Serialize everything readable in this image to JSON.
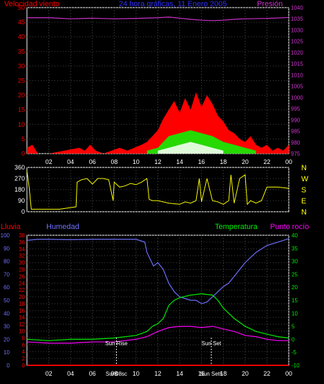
{
  "header": {
    "left_label": "Velocidad viento",
    "title": "24 hora gráficas, 11 Enero 2005",
    "right_label": "Presión"
  },
  "colors": {
    "wind": "#ff0000",
    "gust": "#ffffff",
    "wind_avg": "#00ff00",
    "pressure": "#cc33cc",
    "direction": "#ffff00",
    "rain": "#ff0000",
    "humidity": "#7070ff",
    "temperature": "#00ee00",
    "dewpoint": "#ff00ff",
    "axis": "#ffffff",
    "event": "#ffffff"
  },
  "x_ticks": [
    "02",
    "04",
    "06",
    "08",
    "10",
    "12",
    "14",
    "16",
    "18",
    "20",
    "22",
    "00"
  ],
  "chart_data": [
    {
      "type": "area",
      "panel": "wind-pressure",
      "ylabel_left": "Velocidad viento",
      "ylabel_right": "Presión",
      "y_left_ticks": [
        "0",
        "5",
        "10",
        "15",
        "20",
        "25",
        "30",
        "35",
        "40",
        "45",
        "50"
      ],
      "y_right_ticks": [
        "975",
        "980",
        "985",
        "990",
        "995",
        "1000",
        "1005",
        "1010",
        "1015",
        "1020",
        "1025",
        "1030",
        "1035",
        "1040"
      ],
      "ylim_left": [
        0,
        50
      ],
      "ylim_right": [
        975,
        1040
      ],
      "x_hours": [
        0,
        1,
        2,
        3,
        4,
        5,
        6,
        7,
        8,
        9,
        10,
        11,
        12,
        13,
        14,
        15,
        16,
        17,
        18,
        19,
        20,
        21,
        22,
        23,
        24
      ],
      "series": [
        {
          "name": "Presión",
          "color_key": "pressure",
          "axis": "right",
          "points": [
            [
              0,
              1035.5
            ],
            [
              2,
              1035.5
            ],
            [
              4,
              1035
            ],
            [
              6,
              1035.3
            ],
            [
              8,
              1035
            ],
            [
              10,
              1035.2
            ],
            [
              12,
              1035.5
            ],
            [
              13,
              1035.8
            ],
            [
              14,
              1035.3
            ],
            [
              15,
              1034.8
            ],
            [
              16,
              1034.4
            ],
            [
              17,
              1034.2
            ],
            [
              18,
              1034.4
            ],
            [
              19,
              1034.8
            ],
            [
              20,
              1035.0
            ],
            [
              22,
              1035.2
            ],
            [
              24,
              1035.6
            ]
          ]
        },
        {
          "name": "Velocidad viento",
          "color_key": "wind",
          "axis": "left",
          "points": [
            [
              0,
              2
            ],
            [
              0.5,
              3
            ],
            [
              1,
              0
            ],
            [
              2,
              0
            ],
            [
              4.8,
              2
            ],
            [
              5.3,
              1
            ],
            [
              5.8,
              3
            ],
            [
              6.3,
              1
            ],
            [
              7,
              0
            ],
            [
              8.5,
              2
            ],
            [
              9.2,
              1
            ],
            [
              10.5,
              3
            ],
            [
              11,
              4
            ],
            [
              11.5,
              6
            ],
            [
              12,
              8
            ],
            [
              12.5,
              12
            ],
            [
              13,
              15
            ],
            [
              13.5,
              18
            ],
            [
              14,
              14
            ],
            [
              14.5,
              19
            ],
            [
              15,
              15
            ],
            [
              15.5,
              21
            ],
            [
              16,
              16
            ],
            [
              16.5,
              20
            ],
            [
              17,
              17
            ],
            [
              17.5,
              13
            ],
            [
              18,
              11
            ],
            [
              18.5,
              8
            ],
            [
              19,
              7
            ],
            [
              19.5,
              5
            ],
            [
              20,
              4
            ],
            [
              20.5,
              6
            ],
            [
              21,
              3
            ],
            [
              21.5,
              2
            ],
            [
              22,
              3
            ],
            [
              22.5,
              1
            ],
            [
              23,
              2
            ],
            [
              23.5,
              1
            ],
            [
              24,
              3
            ]
          ]
        },
        {
          "name": "",
          "color_key": "wind_avg",
          "axis": "left",
          "points": [
            [
              11,
              1
            ],
            [
              12,
              2
            ],
            [
              12.5,
              4
            ],
            [
              13,
              6
            ],
            [
              14,
              7
            ],
            [
              15,
              8
            ],
            [
              16,
              7
            ],
            [
              17,
              6
            ],
            [
              18,
              4
            ],
            [
              19,
              3
            ],
            [
              20,
              2
            ],
            [
              21,
              1
            ]
          ]
        },
        {
          "name": "",
          "color_key": "gust",
          "axis": "left",
          "points": [
            [
              12,
              1
            ],
            [
              13,
              2
            ],
            [
              14,
              3
            ],
            [
              15,
              4
            ],
            [
              16,
              3
            ],
            [
              17,
              2
            ],
            [
              18,
              1
            ]
          ]
        }
      ]
    },
    {
      "type": "line",
      "panel": "direction",
      "y_ticks": [
        "0",
        "90",
        "180",
        "270",
        "360"
      ],
      "right_labels": [
        "N",
        "W",
        "S",
        "E",
        "N"
      ],
      "ylim": [
        0,
        360
      ],
      "series": [
        {
          "name": "",
          "color_key": "direction",
          "points": [
            [
              0,
              330
            ],
            [
              0.2,
              200
            ],
            [
              0.4,
              20
            ],
            [
              3,
              20
            ],
            [
              4.5,
              40
            ],
            [
              4.6,
              240
            ],
            [
              5,
              260
            ],
            [
              5.5,
              270
            ],
            [
              6,
              225
            ],
            [
              6.5,
              270
            ],
            [
              7,
              270
            ],
            [
              7.5,
              260
            ],
            [
              7.9,
              90
            ],
            [
              8,
              240
            ],
            [
              8.5,
              200
            ],
            [
              9,
              210
            ],
            [
              9.5,
              230
            ],
            [
              10,
              220
            ],
            [
              10.5,
              240
            ],
            [
              11,
              270
            ],
            [
              11.2,
              100
            ],
            [
              11.5,
              90
            ],
            [
              12,
              90
            ],
            [
              13,
              70
            ],
            [
              14,
              60
            ],
            [
              14.5,
              80
            ],
            [
              15,
              70
            ],
            [
              15.5,
              90
            ],
            [
              15.8,
              270
            ],
            [
              16,
              80
            ],
            [
              16.5,
              270
            ],
            [
              17,
              90
            ],
            [
              17.5,
              80
            ],
            [
              18,
              60
            ],
            [
              18.5,
              90
            ],
            [
              18.7,
              300
            ],
            [
              19,
              70
            ],
            [
              19.5,
              270
            ],
            [
              20,
              300
            ],
            [
              20.2,
              60
            ],
            [
              20.5,
              90
            ],
            [
              21,
              70
            ],
            [
              21.5,
              90
            ],
            [
              22,
              200
            ],
            [
              23,
              200
            ],
            [
              23.5,
              195
            ],
            [
              24,
              190
            ]
          ]
        }
      ]
    },
    {
      "type": "line",
      "panel": "humidity-temperature",
      "label_left": "Lluvia",
      "label_humidity": "Humedad",
      "label_temperature": "Temperatura",
      "label_dewpoint": "Punto rocío",
      "y_rain_ticks": [
        "0",
        "10",
        "20",
        "30",
        "40",
        "50",
        "60",
        "70",
        "80",
        "90",
        "100"
      ],
      "y_hum_ticks": [
        "0",
        "2",
        "4",
        "6",
        "8",
        "10",
        "12",
        "14",
        "16",
        "18",
        "20",
        "22",
        "24",
        "26",
        "28",
        "30",
        "32",
        "34",
        "36",
        "38"
      ],
      "y_temp_ticks": [
        "-10",
        "-5",
        "0",
        "5",
        "10",
        "15",
        "20",
        "25",
        "30",
        "35",
        "40"
      ],
      "ylim_rain": [
        0,
        100
      ],
      "ylim_hum": [
        0,
        38
      ],
      "ylim_temp": [
        -10,
        40
      ],
      "series": [
        {
          "name": "Humedad",
          "color_key": "humidity",
          "axis": "hum",
          "points": [
            [
              0,
              36.5
            ],
            [
              1,
              36.8
            ],
            [
              2,
              36.8
            ],
            [
              4,
              36.7
            ],
            [
              6,
              36.8
            ],
            [
              8,
              36.8
            ],
            [
              10,
              36.8
            ],
            [
              10.8,
              36
            ],
            [
              11,
              33
            ],
            [
              11.3,
              31
            ],
            [
              11.6,
              29
            ],
            [
              12,
              30
            ],
            [
              12.5,
              28
            ],
            [
              13,
              24
            ],
            [
              13.5,
              21.5
            ],
            [
              14,
              20
            ],
            [
              14.5,
              19.5
            ],
            [
              15,
              19
            ],
            [
              15.5,
              19
            ],
            [
              16,
              18
            ],
            [
              16.5,
              18.5
            ],
            [
              17,
              20
            ],
            [
              18,
              23
            ],
            [
              18.5,
              24
            ],
            [
              19,
              26
            ],
            [
              20,
              30
            ],
            [
              21,
              33
            ],
            [
              22,
              35
            ],
            [
              23,
              36
            ],
            [
              24,
              37
            ]
          ]
        },
        {
          "name": "Temperatura",
          "color_key": "temperature",
          "axis": "temp",
          "points": [
            [
              0,
              0
            ],
            [
              2,
              -0.5
            ],
            [
              4,
              0
            ],
            [
              6,
              0
            ],
            [
              8,
              0.5
            ],
            [
              10,
              1.5
            ],
            [
              11,
              3
            ],
            [
              11.5,
              5
            ],
            [
              12,
              6
            ],
            [
              12.5,
              8
            ],
            [
              13,
              13
            ],
            [
              13.5,
              15
            ],
            [
              14,
              16
            ],
            [
              15,
              17
            ],
            [
              16,
              17.5
            ],
            [
              17,
              17
            ],
            [
              17.5,
              15
            ],
            [
              18,
              12
            ],
            [
              19,
              8
            ],
            [
              20,
              5
            ],
            [
              21,
              3
            ],
            [
              22,
              2
            ],
            [
              23,
              1
            ],
            [
              24,
              0.5
            ]
          ]
        },
        {
          "name": "Punto rocío",
          "color_key": "dewpoint",
          "axis": "temp",
          "points": [
            [
              0,
              -1
            ],
            [
              2,
              -1.5
            ],
            [
              4,
              -1.5
            ],
            [
              6,
              -1
            ],
            [
              8,
              -1
            ],
            [
              10,
              0
            ],
            [
              11,
              1
            ],
            [
              12,
              3
            ],
            [
              13,
              4.5
            ],
            [
              14,
              5
            ],
            [
              15,
              5
            ],
            [
              16,
              4.5
            ],
            [
              17,
              5
            ],
            [
              18,
              4
            ],
            [
              19,
              3
            ],
            [
              20,
              1.5
            ],
            [
              21,
              1
            ],
            [
              22,
              0
            ],
            [
              23,
              -0.5
            ],
            [
              24,
              -0.5
            ]
          ]
        },
        {
          "name": "Lluvia",
          "color_key": "rain",
          "axis": "rain",
          "points": [
            [
              0,
              0
            ],
            [
              24,
              0
            ]
          ]
        }
      ],
      "events": [
        {
          "label": "Sun Rise",
          "hour": 8.2,
          "tick_label": "Sun08sc"
        },
        {
          "label": "Sun Set",
          "hour": 16.9,
          "tick_label": "Sun Set6"
        }
      ]
    }
  ]
}
